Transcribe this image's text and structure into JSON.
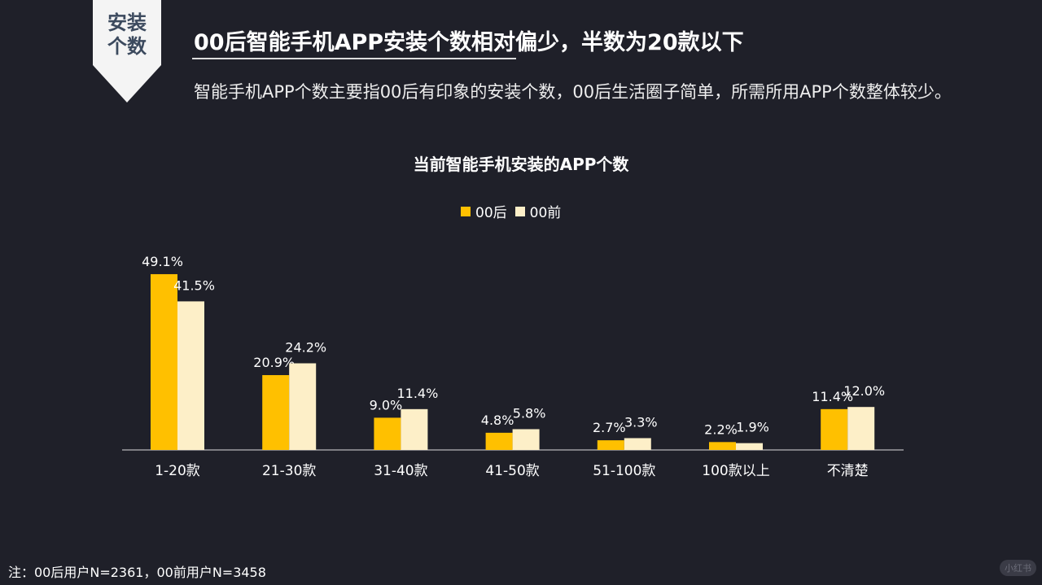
{
  "badge": {
    "text": "安装个数",
    "line1": "安装",
    "line2": "个数"
  },
  "title": "00后智能手机APP安装个数相对偏少，半数为20款以下",
  "subtitle": "智能手机APP个数主要指00后有印象的安装个数，00后生活圈子简单，所需所用APP个数整体较少。",
  "note": "注：00后用户N=2361，00前用户N=3458",
  "watermark": "小红书",
  "chart_data": {
    "type": "bar",
    "title": "当前智能手机安装的APP个数",
    "categories": [
      "1-20款",
      "21-30款",
      "31-40款",
      "41-50款",
      "51-100款",
      "100款以上",
      "不清楚"
    ],
    "series": [
      {
        "name": "00后",
        "color": "#ffc000",
        "values": [
          49.1,
          20.9,
          9.0,
          4.8,
          2.7,
          2.2,
          11.4
        ]
      },
      {
        "name": "00前",
        "color": "#fdefc8",
        "values": [
          41.5,
          24.2,
          11.4,
          5.8,
          3.3,
          1.9,
          12.0
        ]
      }
    ],
    "unit": "%",
    "legend": "top",
    "grid": false
  }
}
